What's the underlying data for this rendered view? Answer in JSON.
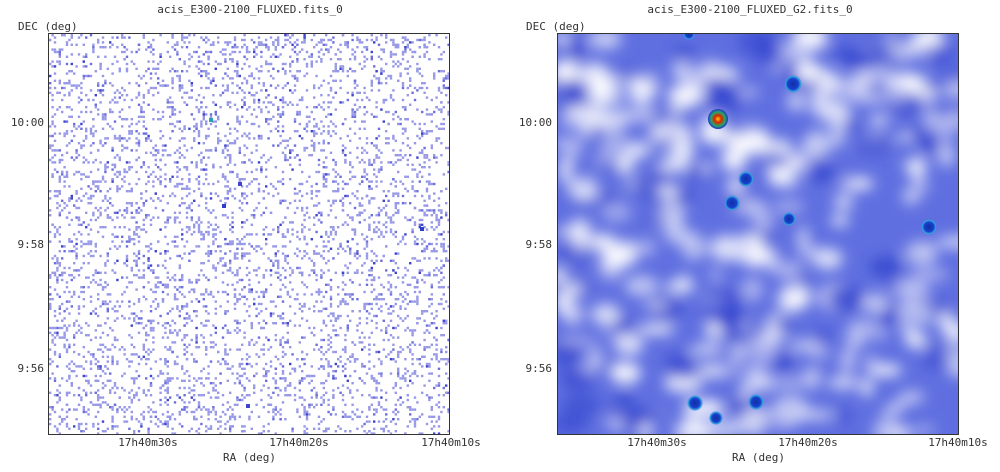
{
  "panels": [
    {
      "title": "acis_E300-2100_FLUXED.fits_0",
      "y_axis_label": "DEC (deg)",
      "x_axis_label": "RA (deg)",
      "y_ticks": [
        "10:00",
        "9:58",
        "9:56"
      ],
      "x_ticks": [
        "17h40m30s",
        "17h40m20s",
        "17h40m10s"
      ],
      "style": "raw-counts"
    },
    {
      "title": "acis_E300-2100_FLUXED_G2.fits_0",
      "y_axis_label": "DEC (deg)",
      "x_axis_label": "RA (deg)",
      "y_ticks": [
        "10:00",
        "9:58",
        "9:56"
      ],
      "x_ticks": [
        "17h40m30s",
        "17h40m20s",
        "17h40m10s"
      ],
      "style": "smoothed"
    }
  ],
  "colors": {
    "frame": "#333333",
    "background_raw": "#ffffff",
    "pixel_raw": "#8f90e0",
    "background_smooth": "#5566dd",
    "source_bright": "#dd2200"
  }
}
